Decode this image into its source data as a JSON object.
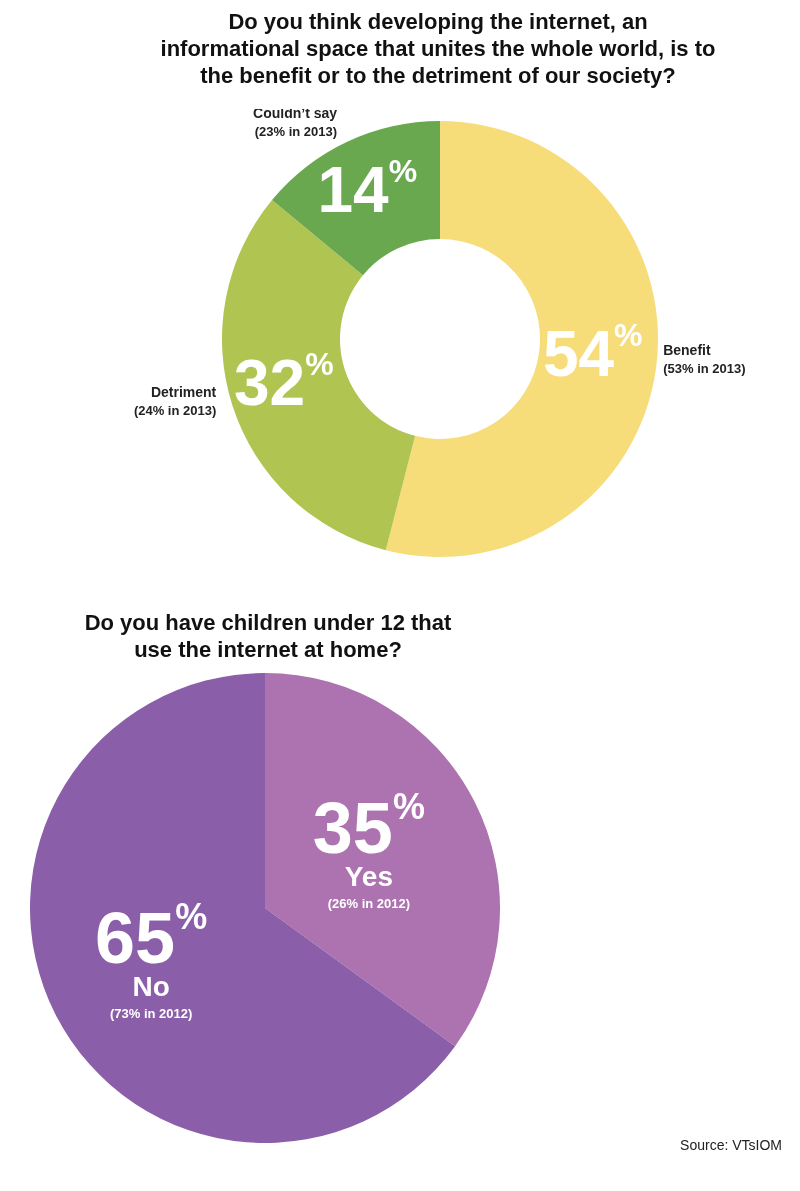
{
  "chart_data": [
    {
      "type": "donut",
      "title": "Do you think developing the internet, an informational space that unites the whole world, is to the benefit or to the detriment of our society?",
      "categories": [
        "Benefit",
        "Detriment",
        "Couldn’t say"
      ],
      "values": [
        54,
        32,
        14
      ],
      "colors": [
        "#f7dc7a",
        "#b0c452",
        "#6aa84f"
      ],
      "value_labels": [
        "54$^{%}$",
        "32$^{%}$",
        "14$^{%}$"
      ],
      "annotations": [
        {
          "text": "(53% in 2013)",
          "x": "Benefit"
        },
        {
          "text": "(24% in 2013)",
          "x": "Detriment"
        },
        {
          "text": "(23% in 2013)",
          "x": "Couldn’t say"
        }
      ]
    },
    {
      "type": "pie",
      "title": "Do you have children under 12 that use the internet at home?",
      "categories": [
        "Yes",
        "No"
      ],
      "values": [
        35,
        65
      ],
      "colors": [
        "#ad73b0",
        "#8a5ea8"
      ],
      "value_labels": [
        "35$^{%}$",
        "65$^{%}$"
      ],
      "annotations": [
        {
          "text": "(26% in 2012)",
          "x": "Yes"
        },
        {
          "text": "(73% in 2012)",
          "x": "No"
        },
        "Source: VTsIOM"
      ]
    }
  ]
}
